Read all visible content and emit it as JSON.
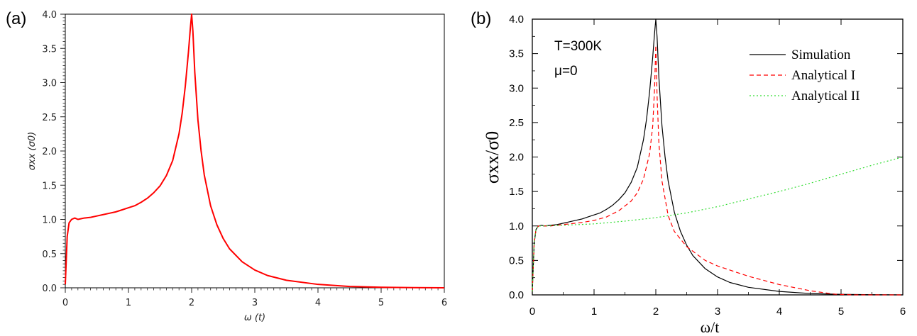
{
  "chart_data": [
    {
      "panel_label": "(a)",
      "type": "line",
      "xlabel": "ω (t)",
      "ylabel": "σxx (σ0)",
      "xlim": [
        0,
        6
      ],
      "ylim": [
        0,
        4
      ],
      "x_ticks": [
        "0",
        "1",
        "2",
        "3",
        "4",
        "5",
        "6"
      ],
      "y_ticks": [
        "0.0",
        "0.5",
        "1.0",
        "1.5",
        "2.0",
        "2.5",
        "3.0",
        "3.5",
        "4.0"
      ],
      "grid": false,
      "series": [
        {
          "color": "#ff0000",
          "style": "solid",
          "x": [
            0,
            0.03,
            0.06,
            0.1,
            0.15,
            0.2,
            0.3,
            0.4,
            0.5,
            0.6,
            0.7,
            0.8,
            0.9,
            1.0,
            1.1,
            1.2,
            1.3,
            1.4,
            1.5,
            1.6,
            1.7,
            1.8,
            1.85,
            1.9,
            1.95,
            1.98,
            2.0,
            2.02,
            2.05,
            2.1,
            2.15,
            2.2,
            2.3,
            2.4,
            2.5,
            2.6,
            2.8,
            3.0,
            3.2,
            3.5,
            4.0,
            4.5,
            5.0,
            5.5,
            6.0
          ],
          "y": [
            0.05,
            0.75,
            0.95,
            1.0,
            1.02,
            1.0,
            1.02,
            1.03,
            1.05,
            1.07,
            1.09,
            1.11,
            1.14,
            1.17,
            1.2,
            1.25,
            1.31,
            1.39,
            1.49,
            1.64,
            1.86,
            2.25,
            2.55,
            2.95,
            3.45,
            3.8,
            4.0,
            3.75,
            3.15,
            2.45,
            2.0,
            1.65,
            1.2,
            0.92,
            0.72,
            0.57,
            0.38,
            0.26,
            0.18,
            0.11,
            0.05,
            0.02,
            0.008,
            0.003,
            0.0
          ]
        }
      ]
    },
    {
      "panel_label": "(b)",
      "type": "line",
      "xlabel": "ω/t",
      "ylabel": "σxx/σ0",
      "xlim": [
        0,
        6
      ],
      "ylim": [
        0,
        4
      ],
      "x_ticks": [
        "0",
        "1",
        "2",
        "3",
        "4",
        "5",
        "6"
      ],
      "y_ticks": [
        "0.0",
        "0.5",
        "1.0",
        "1.5",
        "2.0",
        "2.5",
        "3.0",
        "3.5",
        "4.0"
      ],
      "grid": false,
      "legend_position": "top-right",
      "annotations": [
        "T=300K",
        "μ=0"
      ],
      "series": [
        {
          "name": "Simulation",
          "color": "#000000",
          "style": "solid",
          "x": [
            0,
            0.03,
            0.06,
            0.1,
            0.15,
            0.2,
            0.3,
            0.4,
            0.5,
            0.6,
            0.7,
            0.8,
            0.9,
            1.0,
            1.1,
            1.2,
            1.3,
            1.4,
            1.5,
            1.6,
            1.7,
            1.8,
            1.85,
            1.9,
            1.95,
            1.98,
            2.0,
            2.02,
            2.05,
            2.1,
            2.15,
            2.2,
            2.3,
            2.4,
            2.5,
            2.6,
            2.8,
            3.0,
            3.2,
            3.5,
            4.0,
            4.5,
            5.0,
            5.5,
            6.0
          ],
          "y": [
            0.05,
            0.75,
            0.95,
            1.0,
            1.01,
            1.0,
            1.01,
            1.02,
            1.04,
            1.06,
            1.08,
            1.1,
            1.13,
            1.16,
            1.19,
            1.24,
            1.3,
            1.38,
            1.48,
            1.63,
            1.85,
            2.25,
            2.55,
            2.95,
            3.45,
            3.8,
            4.0,
            3.75,
            3.15,
            2.45,
            2.0,
            1.65,
            1.2,
            0.92,
            0.72,
            0.57,
            0.38,
            0.26,
            0.18,
            0.11,
            0.05,
            0.02,
            0.008,
            0.003,
            0.0
          ]
        },
        {
          "name": "Analytical I",
          "color": "#ff0000",
          "style": "dashed",
          "x": [
            0,
            0.03,
            0.06,
            0.1,
            0.15,
            0.2,
            0.3,
            0.5,
            0.8,
            1.0,
            1.2,
            1.4,
            1.6,
            1.7,
            1.8,
            1.9,
            1.95,
            1.98,
            2.0,
            2.02,
            2.05,
            2.1,
            2.2,
            2.3,
            2.5,
            2.8,
            3.0,
            3.5,
            4.0,
            4.5,
            4.9,
            5.2,
            6.0
          ],
          "y": [
            0.05,
            0.75,
            0.95,
            1.0,
            1.0,
            1.0,
            1.0,
            1.02,
            1.05,
            1.08,
            1.13,
            1.22,
            1.36,
            1.48,
            1.68,
            2.05,
            2.45,
            3.0,
            3.62,
            2.9,
            2.2,
            1.65,
            1.15,
            0.92,
            0.7,
            0.5,
            0.42,
            0.27,
            0.15,
            0.06,
            0.01,
            0.0,
            0.0
          ]
        },
        {
          "name": "Analytical II",
          "color": "#33dd33",
          "style": "dotted",
          "x": [
            0,
            0.03,
            0.06,
            0.1,
            0.15,
            0.2,
            0.5,
            1.0,
            1.5,
            2.0,
            2.5,
            3.0,
            3.5,
            4.0,
            4.5,
            5.0,
            5.5,
            6.0
          ],
          "y": [
            0.05,
            0.75,
            0.95,
            1.0,
            1.0,
            1.0,
            1.01,
            1.03,
            1.07,
            1.12,
            1.19,
            1.28,
            1.39,
            1.5,
            1.62,
            1.75,
            1.88,
            2.0
          ]
        }
      ]
    }
  ]
}
